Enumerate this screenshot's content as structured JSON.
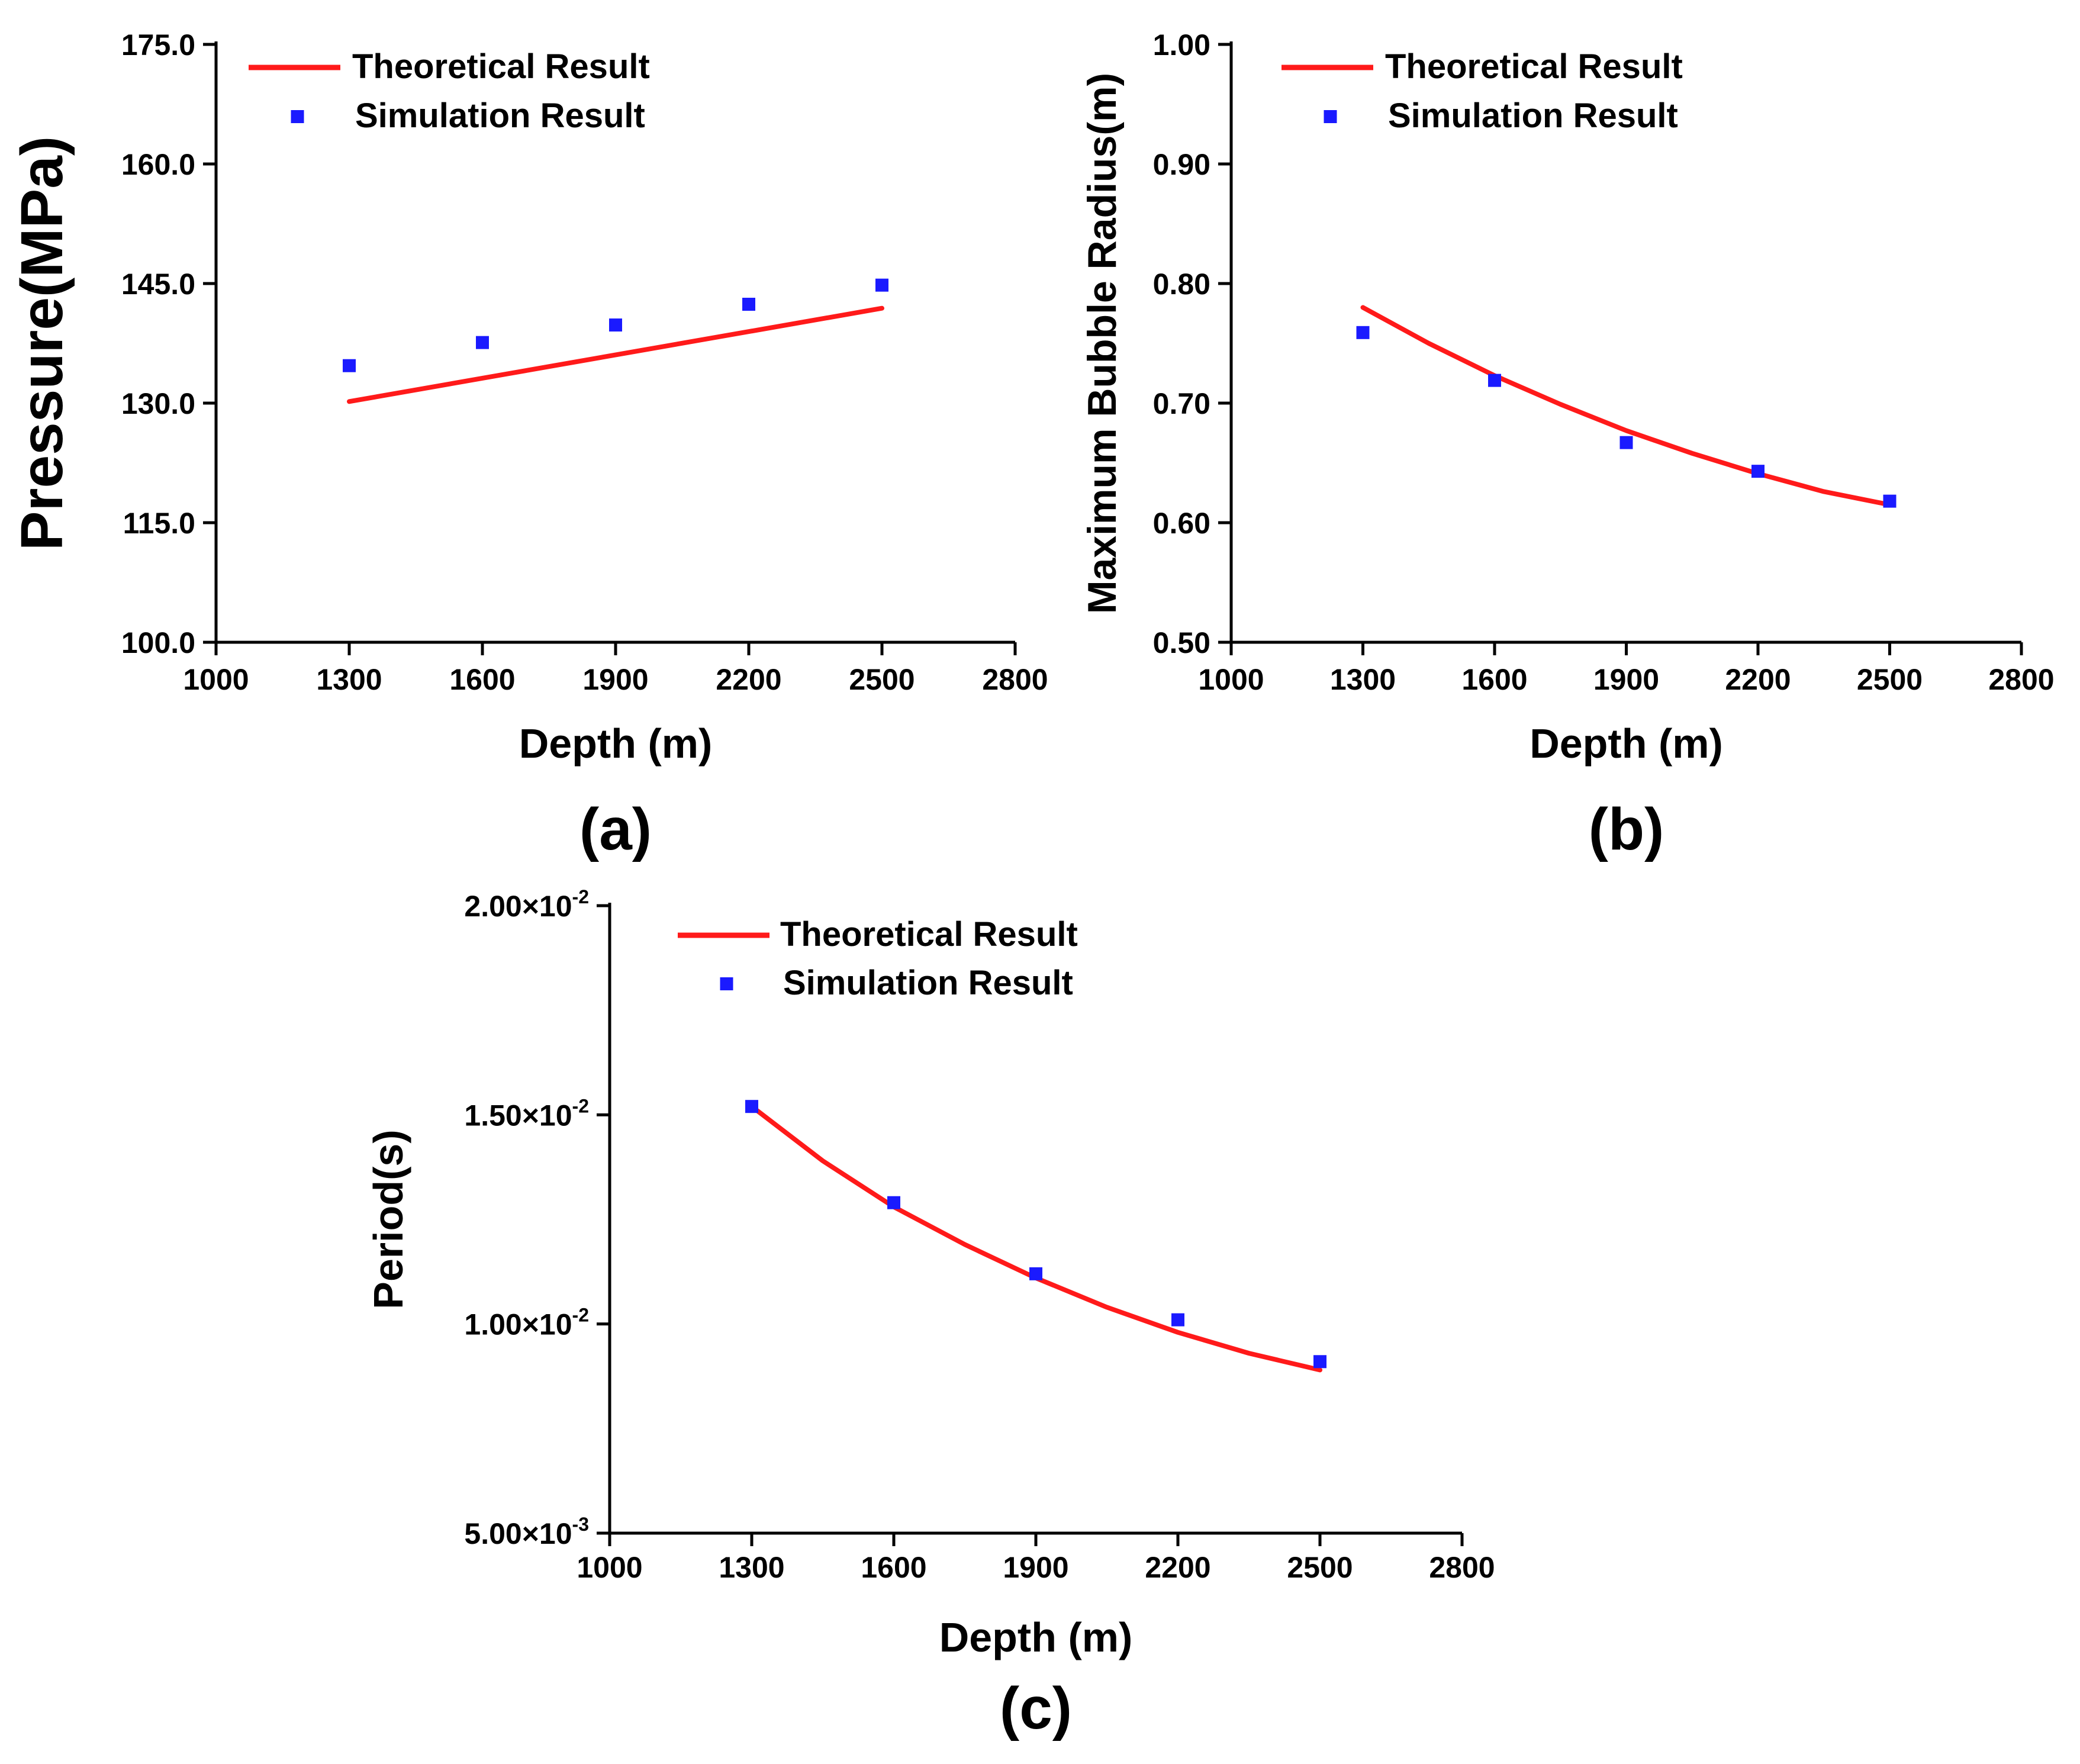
{
  "chart_data": [
    {
      "id": "a",
      "type": "line",
      "panel_label": "(a)",
      "xlabel": "Depth (m)",
      "ylabel": "Pressure(MPa)",
      "xlim": [
        1000,
        2800
      ],
      "ylim": [
        100,
        175
      ],
      "xticks": [
        1000,
        1300,
        1600,
        1900,
        2200,
        2500,
        2800
      ],
      "xtick_labels": [
        "1000",
        "1300",
        "1600",
        "1900",
        "2200",
        "2500",
        "2800"
      ],
      "yticks": [
        100,
        115,
        130,
        145,
        160,
        175
      ],
      "ytick_labels": [
        "100.0",
        "115.0",
        "130.0",
        "145.0",
        "160.0",
        "175.0"
      ],
      "legend": [
        "Theoretical Result",
        "Simulation Result"
      ],
      "series": [
        {
          "name": "Theoretical Result",
          "kind": "line",
          "color": "#ff1a1a",
          "x": [
            1300,
            2500
          ],
          "y": [
            130.2,
            141.9
          ]
        },
        {
          "name": "Simulation Result",
          "kind": "scatter",
          "color": "#1a1aff",
          "x": [
            1300,
            1600,
            1900,
            2200,
            2500
          ],
          "y": [
            134.7,
            137.6,
            139.8,
            142.4,
            144.8
          ]
        }
      ]
    },
    {
      "id": "b",
      "type": "line",
      "panel_label": "(b)",
      "xlabel": "Depth (m)",
      "ylabel": "Maximum Bubble Radius(m)",
      "xlim": [
        1000,
        2800
      ],
      "ylim": [
        0.5,
        1.0
      ],
      "xticks": [
        1000,
        1300,
        1600,
        1900,
        2200,
        2500,
        2800
      ],
      "xtick_labels": [
        "1000",
        "1300",
        "1600",
        "1900",
        "2200",
        "2500",
        "2800"
      ],
      "yticks": [
        0.5,
        0.6,
        0.7,
        0.8,
        0.9,
        1.0
      ],
      "ytick_labels": [
        "0.50",
        "0.60",
        "0.70",
        "0.80",
        "0.90",
        "1.00"
      ],
      "legend": [
        "Theoretical Result",
        "Simulation Result"
      ],
      "series": [
        {
          "name": "Theoretical Result",
          "kind": "line",
          "color": "#ff1a1a",
          "x": [
            1300,
            1450,
            1600,
            1750,
            1900,
            2050,
            2200,
            2350,
            2500
          ],
          "y": [
            0.78,
            0.75,
            0.723,
            0.699,
            0.677,
            0.658,
            0.641,
            0.626,
            0.615
          ]
        },
        {
          "name": "Simulation Result",
          "kind": "scatter",
          "color": "#1a1aff",
          "x": [
            1300,
            1600,
            1900,
            2200,
            2500
          ],
          "y": [
            0.759,
            0.719,
            0.667,
            0.643,
            0.618
          ]
        }
      ]
    },
    {
      "id": "c",
      "type": "line",
      "panel_label": "(c)",
      "xlabel": "Depth (m)",
      "ylabel": "Period(s)",
      "xlim": [
        1000,
        2800
      ],
      "ylim": [
        0.005,
        0.02
      ],
      "xticks": [
        1000,
        1300,
        1600,
        1900,
        2200,
        2500,
        2800
      ],
      "xtick_labels": [
        "1000",
        "1300",
        "1600",
        "1900",
        "2200",
        "2500",
        "2800"
      ],
      "yticks": [
        0.005,
        0.01,
        0.015,
        0.02
      ],
      "ytick_mantissas": [
        "5.00×10",
        "1.00×10",
        "1.50×10",
        "2.00×10"
      ],
      "ytick_exponents": [
        "-3",
        "-2",
        "-2",
        "-2"
      ],
      "legend": [
        "Theoretical Result",
        "Simulation Result"
      ],
      "series": [
        {
          "name": "Theoretical Result",
          "kind": "line",
          "color": "#ff1a1a",
          "x": [
            1300,
            1450,
            1600,
            1750,
            1900,
            2050,
            2200,
            2350,
            2500
          ],
          "y": [
            0.0152,
            0.0139,
            0.0128,
            0.0119,
            0.0111,
            0.0104,
            0.0098,
            0.0093,
            0.0089
          ]
        },
        {
          "name": "Simulation Result",
          "kind": "scatter",
          "color": "#1a1aff",
          "x": [
            1300,
            1600,
            1900,
            2200,
            2500
          ],
          "y": [
            0.0152,
            0.0129,
            0.0112,
            0.0101,
            0.0091
          ]
        }
      ]
    }
  ]
}
